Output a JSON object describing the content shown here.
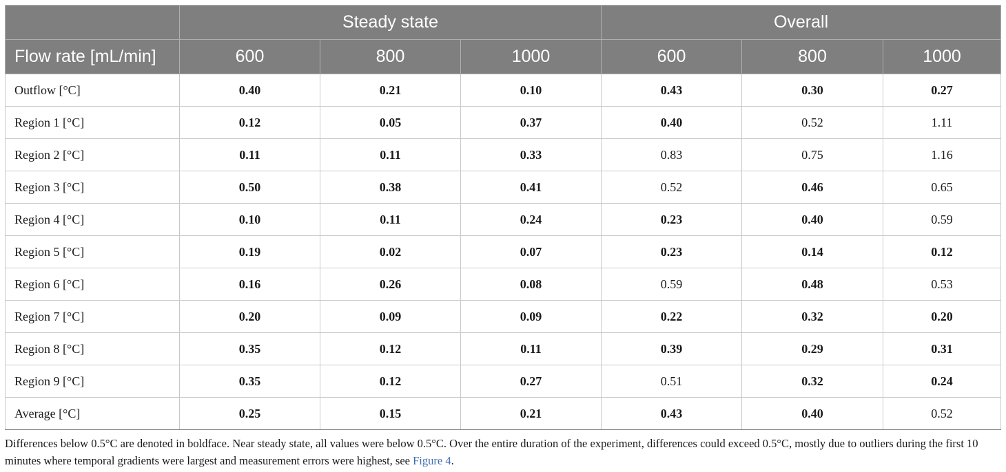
{
  "table": {
    "groups": [
      "Steady state",
      "Overall"
    ],
    "row_header_label": "Flow rate [mL/min]",
    "columns": [
      "600",
      "800",
      "1000",
      "600",
      "800",
      "1000"
    ],
    "rows": [
      {
        "label": "Outflow [°C]",
        "values": [
          "0.40",
          "0.21",
          "0.10",
          "0.43",
          "0.30",
          "0.27"
        ],
        "bold": [
          true,
          true,
          true,
          true,
          true,
          true
        ]
      },
      {
        "label": "Region 1 [°C]",
        "values": [
          "0.12",
          "0.05",
          "0.37",
          "0.40",
          "0.52",
          "1.11"
        ],
        "bold": [
          true,
          true,
          true,
          true,
          false,
          false
        ]
      },
      {
        "label": "Region 2 [°C]",
        "values": [
          "0.11",
          "0.11",
          "0.33",
          "0.83",
          "0.75",
          "1.16"
        ],
        "bold": [
          true,
          true,
          true,
          false,
          false,
          false
        ]
      },
      {
        "label": "Region 3 [°C]",
        "values": [
          "0.50",
          "0.38",
          "0.41",
          "0.52",
          "0.46",
          "0.65"
        ],
        "bold": [
          true,
          true,
          true,
          false,
          true,
          false
        ]
      },
      {
        "label": "Region 4 [°C]",
        "values": [
          "0.10",
          "0.11",
          "0.24",
          "0.23",
          "0.40",
          "0.59"
        ],
        "bold": [
          true,
          true,
          true,
          true,
          true,
          false
        ]
      },
      {
        "label": "Region 5 [°C]",
        "values": [
          "0.19",
          "0.02",
          "0.07",
          "0.23",
          "0.14",
          "0.12"
        ],
        "bold": [
          true,
          true,
          true,
          true,
          true,
          true
        ]
      },
      {
        "label": "Region 6 [°C]",
        "values": [
          "0.16",
          "0.26",
          "0.08",
          "0.59",
          "0.48",
          "0.53"
        ],
        "bold": [
          true,
          true,
          true,
          false,
          true,
          false
        ]
      },
      {
        "label": "Region 7 [°C]",
        "values": [
          "0.20",
          "0.09",
          "0.09",
          "0.22",
          "0.32",
          "0.20"
        ],
        "bold": [
          true,
          true,
          true,
          true,
          true,
          true
        ]
      },
      {
        "label": "Region 8 [°C]",
        "values": [
          "0.35",
          "0.12",
          "0.11",
          "0.39",
          "0.29",
          "0.31"
        ],
        "bold": [
          true,
          true,
          true,
          true,
          true,
          true
        ]
      },
      {
        "label": "Region 9 [°C]",
        "values": [
          "0.35",
          "0.12",
          "0.27",
          "0.51",
          "0.32",
          "0.24"
        ],
        "bold": [
          true,
          true,
          true,
          false,
          true,
          true
        ]
      },
      {
        "label": "Average [°C]",
        "values": [
          "0.25",
          "0.15",
          "0.21",
          "0.43",
          "0.40",
          "0.52"
        ],
        "bold": [
          true,
          true,
          true,
          true,
          true,
          false
        ]
      }
    ]
  },
  "footnote": {
    "text": "Differences below 0.5°C are denoted in boldface. Near steady state, all values were below 0.5°C. Over the entire duration of the experiment, differences could exceed 0.5°C, mostly due to outliers during the first 10 minutes where temporal gradients were largest and measurement errors were highest, see ",
    "link_text": "Figure 4",
    "end": "."
  },
  "colors": {
    "header_bg": "#7f7f7f",
    "header_text": "#ffffff",
    "link": "#3f6fb5"
  }
}
